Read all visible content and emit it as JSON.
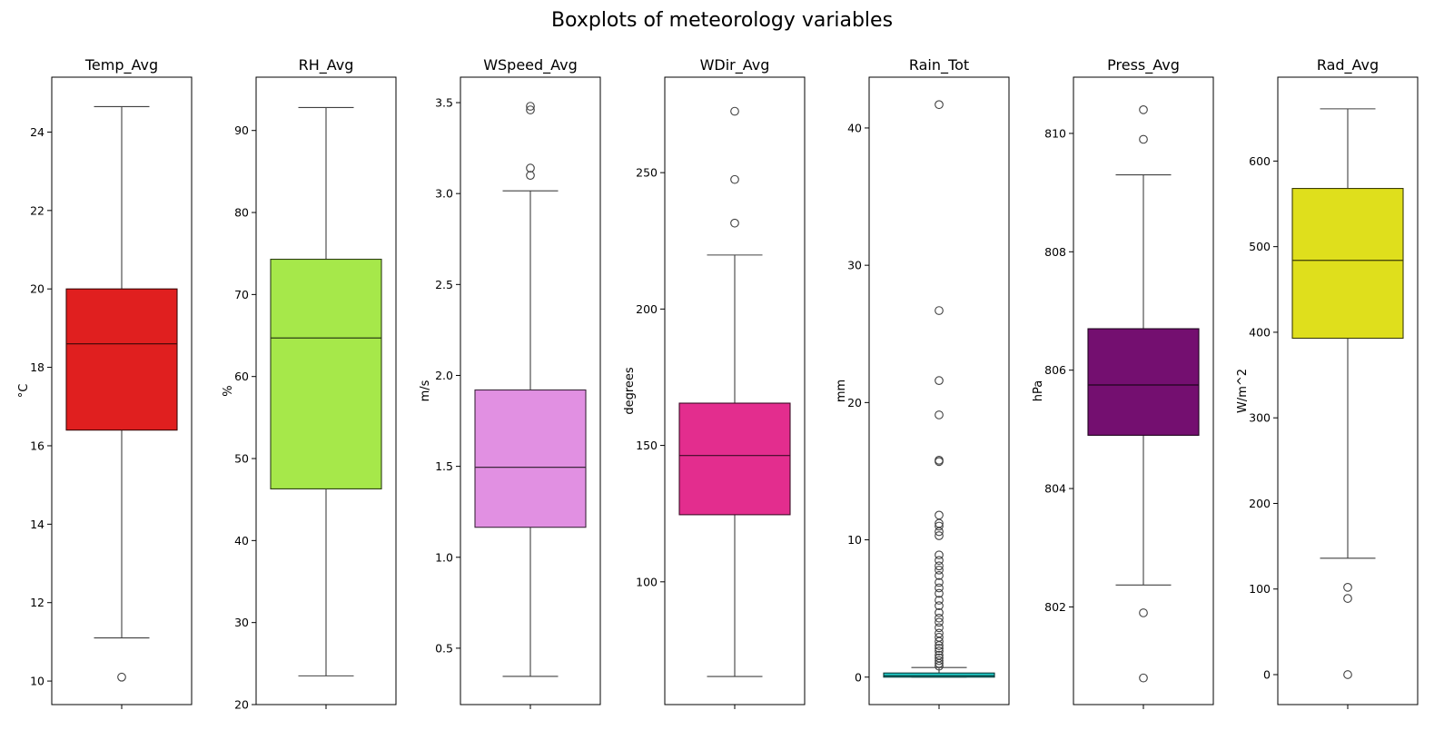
{
  "chart_data": {
    "type": "boxplot",
    "title": "Boxplots of meteorology variables",
    "panels": [
      {
        "name": "Temp_Avg",
        "ylabel": "°C",
        "color": "#e01f1f",
        "ylim": [
          9.4,
          25.4
        ],
        "ticks": [
          10,
          12,
          14,
          16,
          18,
          20,
          22,
          24
        ],
        "q1": 16.4,
        "median": 18.6,
        "q3": 20.0,
        "whisker_low": 11.1,
        "whisker_high": 24.65,
        "outliers": [
          10.1
        ]
      },
      {
        "name": "RH_Avg",
        "ylabel": "%",
        "color": "#a6e84a",
        "ylim": [
          20,
          96.5
        ],
        "ticks": [
          20,
          30,
          40,
          50,
          60,
          70,
          80,
          90
        ],
        "q1": 46.3,
        "median": 64.7,
        "q3": 74.3,
        "whisker_low": 23.5,
        "whisker_high": 92.8,
        "outliers": []
      },
      {
        "name": "WSpeed_Avg",
        "ylabel": "m/s",
        "color": "#e190e2",
        "ylim": [
          0.19,
          3.64
        ],
        "ticks": [
          0.5,
          1.0,
          1.5,
          2.0,
          2.5,
          3.0,
          3.5
        ],
        "tick_labels": [
          "0.5",
          "1.0",
          "1.5",
          "2.0",
          "2.5",
          "3.0",
          "3.5"
        ],
        "q1": 1.165,
        "median": 1.495,
        "q3": 1.92,
        "whisker_low": 0.345,
        "whisker_high": 3.015,
        "outliers": [
          3.1,
          3.14,
          3.46,
          3.48
        ]
      },
      {
        "name": "WDir_Avg",
        "ylabel": "degrees",
        "color": "#e32d8e",
        "ylim": [
          55,
          285
        ],
        "ticks": [
          100,
          150,
          200,
          250
        ],
        "q1": 124.6,
        "median": 146.3,
        "q3": 165.5,
        "whisker_low": 65.3,
        "whisker_high": 219.8,
        "outliers": [
          231.5,
          247.5,
          272.5
        ]
      },
      {
        "name": "Rain_Tot",
        "ylabel": "mm",
        "color": "#22d0cc",
        "ylim": [
          -2.0,
          43.7
        ],
        "ticks": [
          0,
          10,
          20,
          30,
          40
        ],
        "q1": 0.0,
        "median": 0.1,
        "q3": 0.3,
        "whisker_low": 0.0,
        "whisker_high": 0.7,
        "outliers": [
          0.8,
          1.0,
          1.2,
          1.4,
          1.6,
          1.9,
          2.1,
          2.3,
          2.6,
          2.9,
          3.2,
          3.6,
          4.0,
          4.3,
          4.7,
          5.2,
          5.6,
          6.1,
          6.5,
          6.9,
          7.4,
          7.8,
          8.1,
          8.5,
          8.9,
          10.3,
          10.6,
          11.0,
          11.2,
          11.8,
          15.7,
          15.8,
          19.1,
          21.6,
          26.7,
          41.7
        ]
      },
      {
        "name": "Press_Avg",
        "ylabel": "hPa",
        "color": "#740f70",
        "ylim": [
          800.35,
          810.95
        ],
        "ticks": [
          802,
          804,
          806,
          808,
          810
        ],
        "q1": 804.9,
        "median": 805.75,
        "q3": 806.7,
        "whisker_low": 802.37,
        "whisker_high": 809.3,
        "outliers": [
          800.8,
          801.9,
          809.9,
          810.4
        ]
      },
      {
        "name": "Rad_Avg",
        "ylabel": "W/m^2",
        "color": "#dfdf1c",
        "ylim": [
          -35,
          698
        ],
        "ticks": [
          0,
          100,
          200,
          300,
          400,
          500,
          600
        ],
        "q1": 393,
        "median": 484,
        "q3": 568,
        "whisker_low": 136,
        "whisker_high": 661,
        "outliers": [
          0,
          89,
          102
        ]
      }
    ]
  }
}
